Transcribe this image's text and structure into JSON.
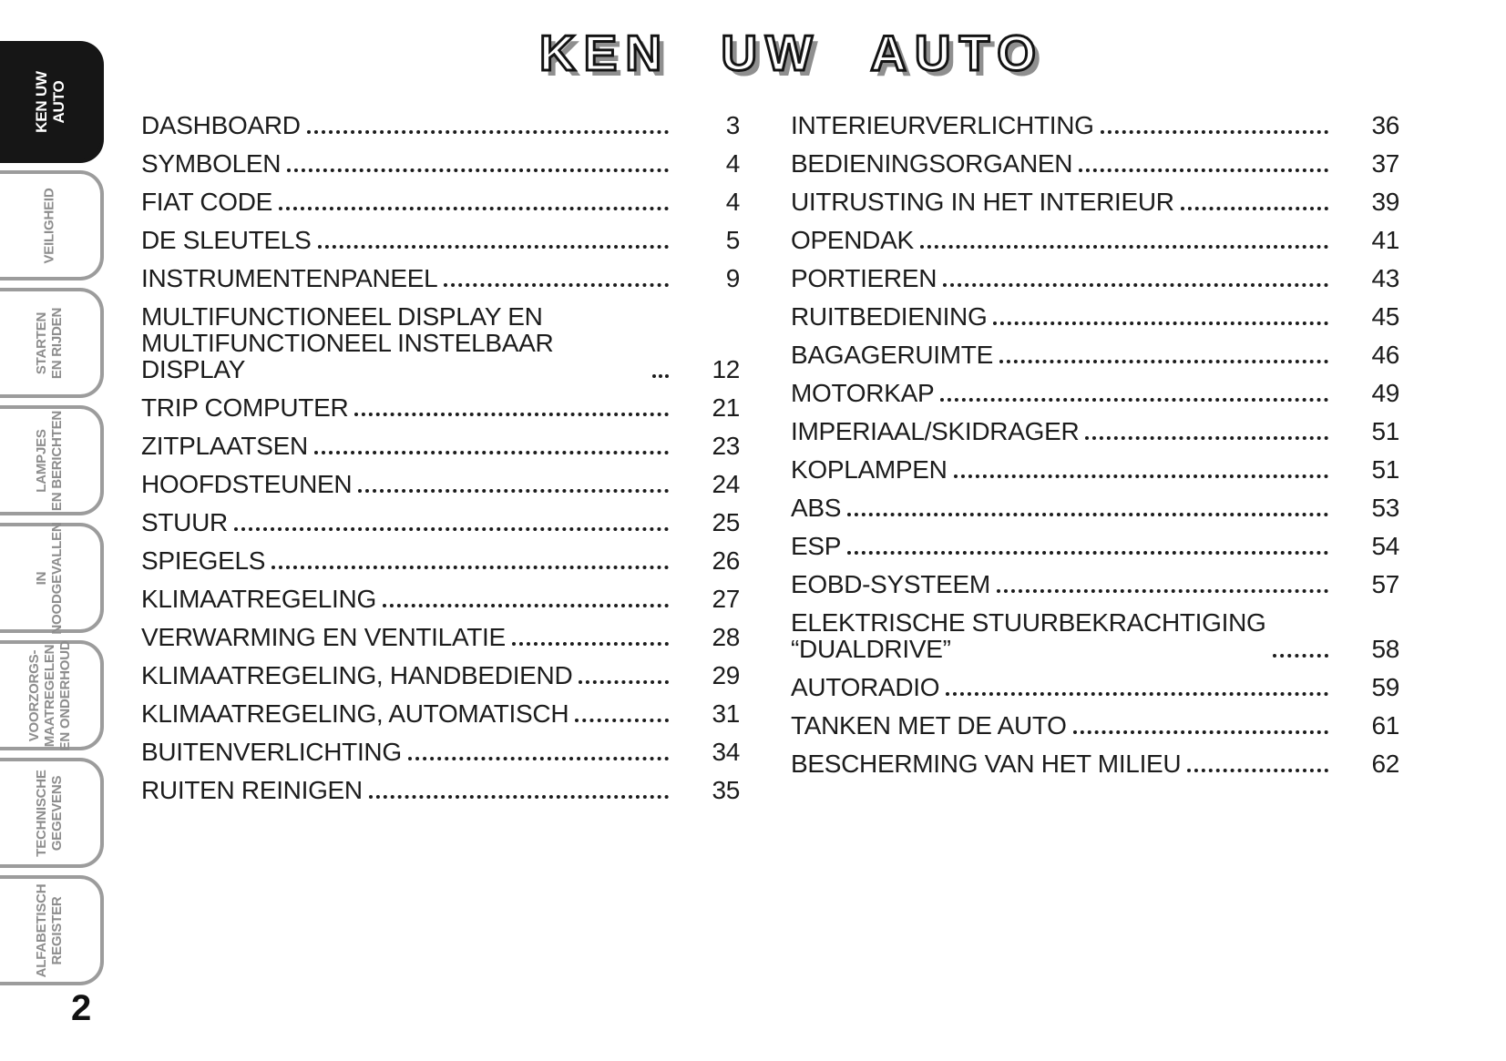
{
  "page": {
    "title": "KEN UW AUTO",
    "page_number": "2"
  },
  "sidebar": {
    "tabs": [
      {
        "label": "KEN UW\nAUTO",
        "active": true
      },
      {
        "label": "VEILIGHEID",
        "active": false
      },
      {
        "label": "STARTEN\nEN RIJDEN",
        "active": false
      },
      {
        "label": "LAMPJES\nEN BERICHTEN",
        "active": false
      },
      {
        "label": "IN\nNOODGEVALLEN",
        "active": false
      },
      {
        "label": "VOORZORGS-\nMAATREGELEN\nEN ONDERHOUD",
        "active": false
      },
      {
        "label": "TECHNISCHE\nGEGEVENS",
        "active": false
      },
      {
        "label": "ALFABETISCH\nREGISTER",
        "active": false
      }
    ]
  },
  "toc": {
    "left_column": [
      {
        "title": "DASHBOARD",
        "page": "3"
      },
      {
        "title": "SYMBOLEN",
        "page": "4"
      },
      {
        "title": "FIAT CODE",
        "page": "4"
      },
      {
        "title": "DE SLEUTELS",
        "page": "5"
      },
      {
        "title": "INSTRUMENTENPANEEL",
        "page": "9"
      },
      {
        "title": "MULTIFUNCTIONEEL DISPLAY EN\nMULTIFUNCTIONEEL INSTELBAAR DISPLAY",
        "page": "12"
      },
      {
        "title": "TRIP COMPUTER",
        "page": "21"
      },
      {
        "title": "ZITPLAATSEN",
        "page": "23"
      },
      {
        "title": "HOOFDSTEUNEN",
        "page": "24"
      },
      {
        "title": "STUUR",
        "page": "25"
      },
      {
        "title": "SPIEGELS",
        "page": "26"
      },
      {
        "title": "KLIMAATREGELING",
        "page": "27"
      },
      {
        "title": "VERWARMING EN VENTILATIE",
        "page": "28"
      },
      {
        "title": "KLIMAATREGELING, HANDBEDIEND",
        "page": "29"
      },
      {
        "title": "KLIMAATREGELING, AUTOMATISCH",
        "page": "31"
      },
      {
        "title": "BUITENVERLICHTING",
        "page": "34"
      },
      {
        "title": "RUITEN REINIGEN",
        "page": "35"
      }
    ],
    "right_column": [
      {
        "title": "INTERIEURVERLICHTING",
        "page": "36"
      },
      {
        "title": "BEDIENINGSORGANEN",
        "page": "37"
      },
      {
        "title": "UITRUSTING IN HET INTERIEUR",
        "page": "39"
      },
      {
        "title": "OPENDAK",
        "page": "41"
      },
      {
        "title": "PORTIEREN",
        "page": "43"
      },
      {
        "title": "RUITBEDIENING",
        "page": "45"
      },
      {
        "title": "BAGAGERUIMTE",
        "page": "46"
      },
      {
        "title": "MOTORKAP",
        "page": "49"
      },
      {
        "title": "IMPERIAAL/SKIDRAGER",
        "page": "51"
      },
      {
        "title": "KOPLAMPEN",
        "page": "51"
      },
      {
        "title": "ABS",
        "page": "53"
      },
      {
        "title": "ESP",
        "page": "54"
      },
      {
        "title": "EOBD-SYSTEEM",
        "page": "57"
      },
      {
        "title": "ELEKTRISCHE STUURBEKRACHTIGING\n“DUALDRIVE”",
        "page": "58"
      },
      {
        "title": "AUTORADIO",
        "page": "59"
      },
      {
        "title": "TANKEN MET DE AUTO",
        "page": "61"
      },
      {
        "title": "BESCHERMING VAN HET MILIEU",
        "page": "62"
      }
    ]
  }
}
